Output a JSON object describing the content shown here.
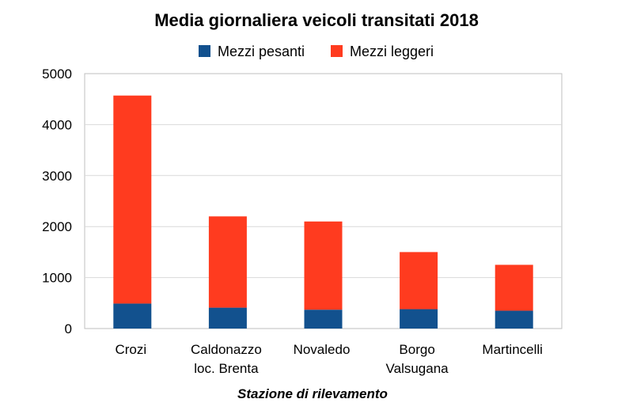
{
  "chart_data": {
    "type": "bar",
    "stacked": true,
    "title": "Media giornaliera veicoli transitati 2018",
    "xlabel": "Stazione di rilevamento",
    "ylabel": "",
    "ylim": [
      0,
      5000
    ],
    "yticks": [
      0,
      1000,
      2000,
      3000,
      4000,
      5000
    ],
    "grid": true,
    "legend_position": "top",
    "categories": [
      [
        "Crozi"
      ],
      [
        "Caldonazzo",
        "loc. Brenta"
      ],
      [
        "Novaledo"
      ],
      [
        "Borgo",
        "Valsugana"
      ],
      [
        "Martincelli"
      ]
    ],
    "series": [
      {
        "name": "Mezzi pesanti",
        "color": "#12518e",
        "values": [
          490,
          410,
          370,
          380,
          350
        ]
      },
      {
        "name": "Mezzi leggeri",
        "color": "#ff3b1f",
        "values": [
          4080,
          1790,
          1730,
          1120,
          900
        ]
      }
    ]
  }
}
